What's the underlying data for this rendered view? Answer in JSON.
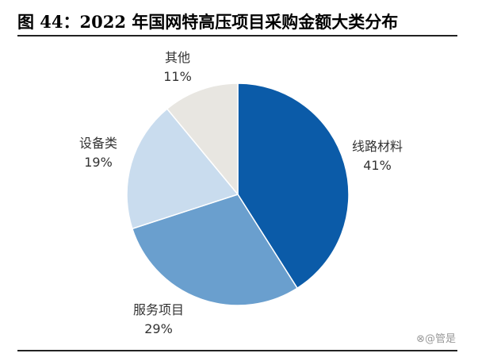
{
  "title": "图 44：2022 年国网特高压项目采购金额大类分布",
  "watermark": "⊗@管是",
  "chart_data": {
    "type": "pie",
    "title": "",
    "slices": [
      {
        "label": "线路材料",
        "value": 41,
        "value_label": "41%",
        "color": "#0b5ba8"
      },
      {
        "label": "服务项目",
        "value": 29,
        "value_label": "29%",
        "color": "#6a9fce"
      },
      {
        "label": "设备类",
        "value": 19,
        "value_label": "19%",
        "color": "#c9dcee"
      },
      {
        "label": "其他",
        "value": 11,
        "value_label": "11%",
        "color": "#e8e6e1"
      }
    ],
    "start": "top",
    "direction": "clockwise",
    "legend": "none"
  }
}
